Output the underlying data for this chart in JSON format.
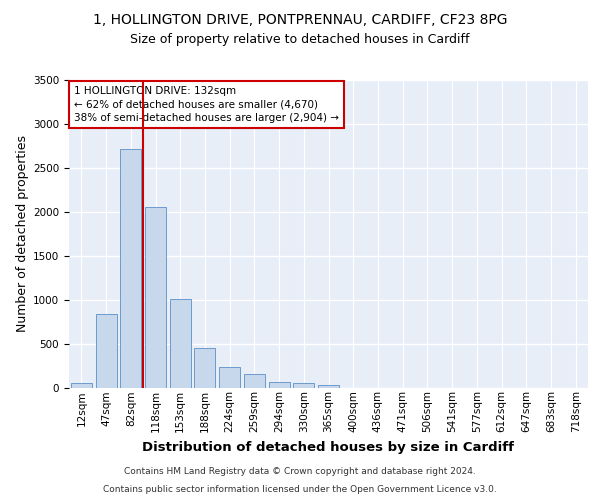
{
  "title_line1": "1, HOLLINGTON DRIVE, PONTPRENNAU, CARDIFF, CF23 8PG",
  "title_line2": "Size of property relative to detached houses in Cardiff",
  "xlabel": "Distribution of detached houses by size in Cardiff",
  "ylabel": "Number of detached properties",
  "categories": [
    "12sqm",
    "47sqm",
    "82sqm",
    "118sqm",
    "153sqm",
    "188sqm",
    "224sqm",
    "259sqm",
    "294sqm",
    "330sqm",
    "365sqm",
    "400sqm",
    "436sqm",
    "471sqm",
    "506sqm",
    "541sqm",
    "577sqm",
    "612sqm",
    "647sqm",
    "683sqm",
    "718sqm"
  ],
  "values": [
    55,
    840,
    2720,
    2060,
    1005,
    450,
    235,
    150,
    65,
    50,
    30,
    0,
    0,
    0,
    0,
    0,
    0,
    0,
    0,
    0,
    0
  ],
  "bar_color": "#c8d8ec",
  "bar_edge_color": "#5b8fc9",
  "vline_index": 3,
  "vline_color": "#cc0000",
  "annotation_text": "1 HOLLINGTON DRIVE: 132sqm\n← 62% of detached houses are smaller (4,670)\n38% of semi-detached houses are larger (2,904) →",
  "annotation_box_color": "#cc0000",
  "footnote_line1": "Contains HM Land Registry data © Crown copyright and database right 2024.",
  "footnote_line2": "Contains public sector information licensed under the Open Government Licence v3.0.",
  "ylim": [
    0,
    3500
  ],
  "yticks": [
    0,
    500,
    1000,
    1500,
    2000,
    2500,
    3000,
    3500
  ],
  "fig_bg": "#ffffff",
  "axes_bg": "#e8eef8",
  "grid_color": "#ffffff",
  "title_fontsize": 10,
  "subtitle_fontsize": 9,
  "axis_label_fontsize": 9,
  "tick_fontsize": 7.5,
  "footnote_fontsize": 6.5
}
